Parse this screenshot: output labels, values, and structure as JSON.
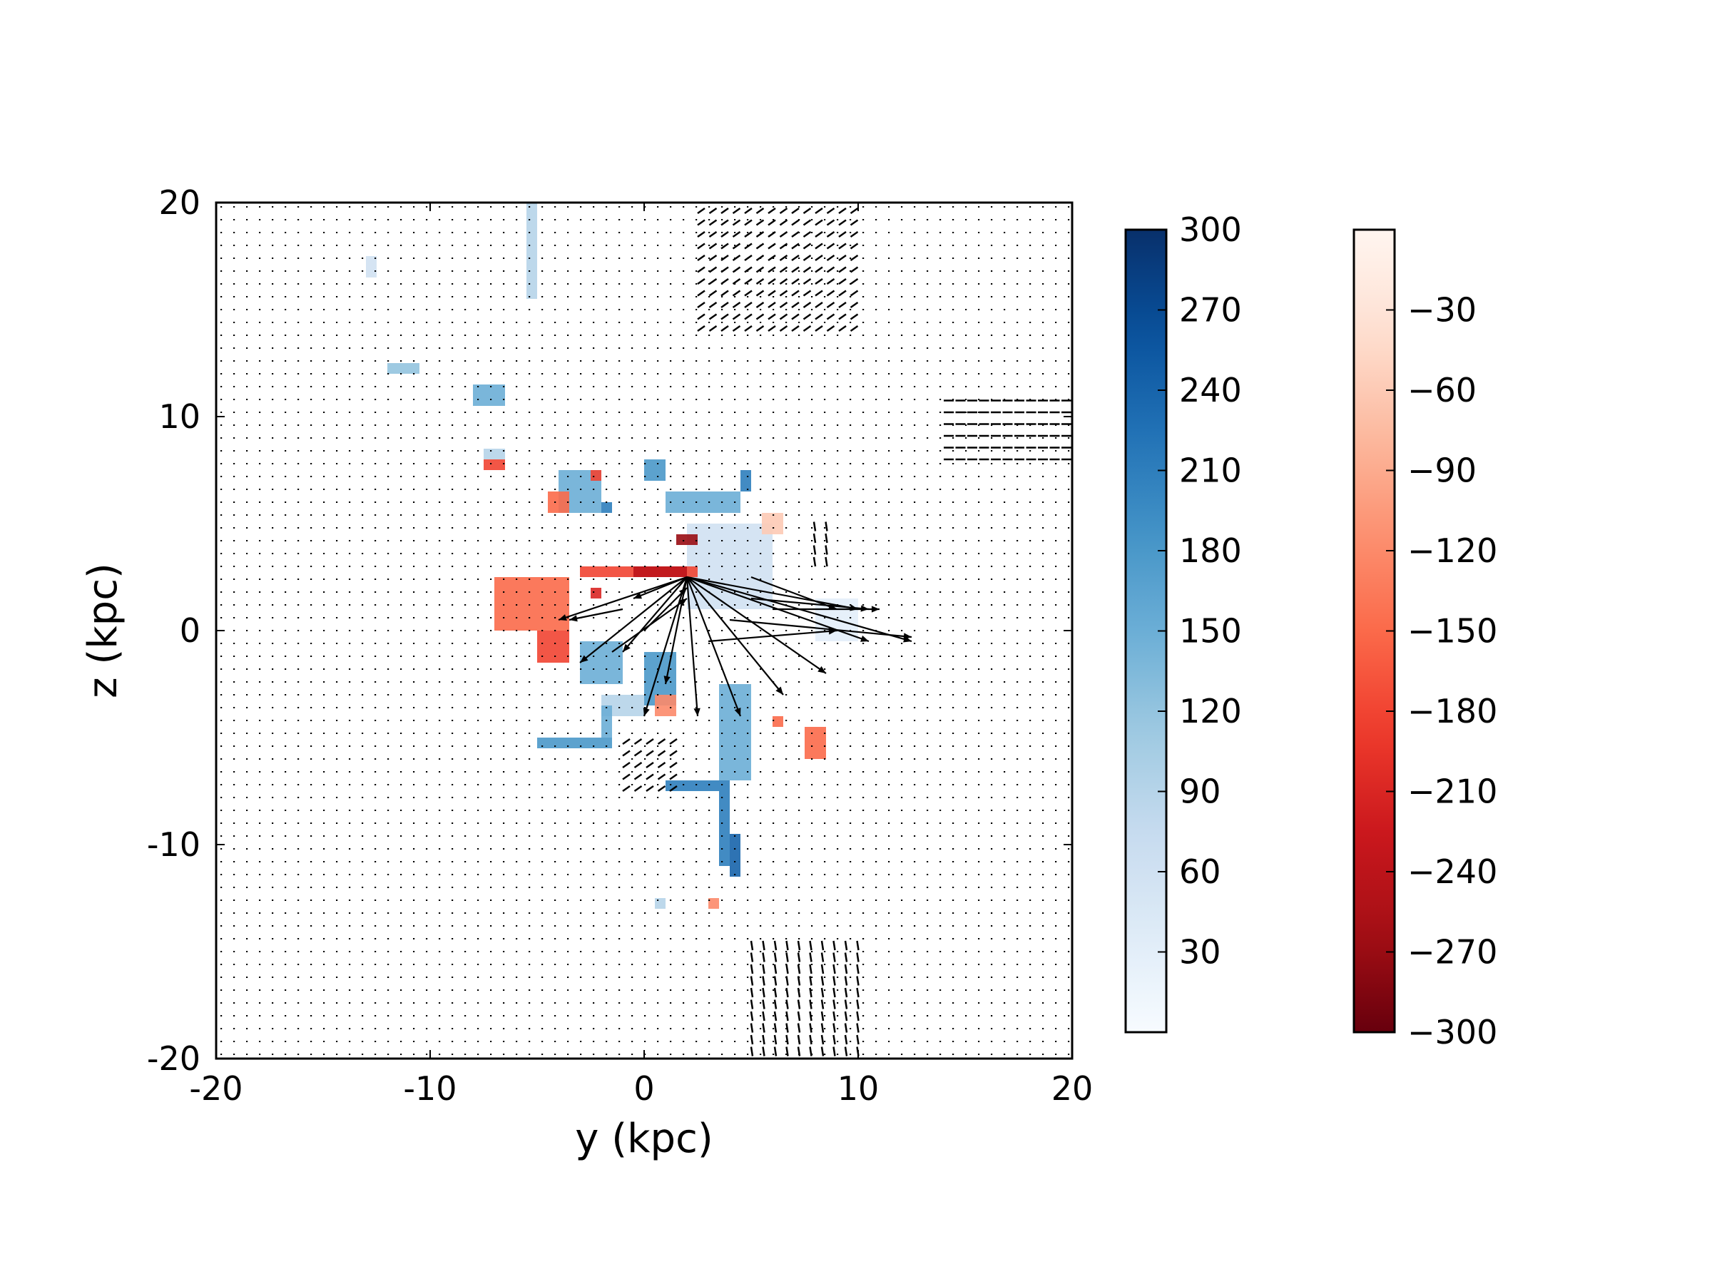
{
  "chart_data": {
    "type": "heatmap",
    "subtype": "velocity field with quiver arrows",
    "xlabel": "y (kpc)",
    "ylabel": "z (kpc)",
    "xlim": [
      -20,
      20
    ],
    "ylim": [
      -20,
      20
    ],
    "x_ticks": [
      "-20",
      "-10",
      "0",
      "10",
      "20"
    ],
    "y_ticks": [
      "20",
      "10",
      "0",
      "-10",
      "-20"
    ],
    "grid": false,
    "colorbars": [
      {
        "name": "positive",
        "colormap": "Blues",
        "range": [
          0,
          300
        ],
        "tick_labels": [
          "300",
          "270",
          "240",
          "210",
          "180",
          "150",
          "120",
          "90",
          "60",
          "30"
        ],
        "tick_values": [
          300,
          270,
          240,
          210,
          180,
          150,
          120,
          90,
          60,
          30
        ],
        "colors": [
          "#f7fbff",
          "#deebf7",
          "#c6dbef",
          "#9ecae1",
          "#6baed6",
          "#4292c6",
          "#2171b5",
          "#08519c",
          "#08306b"
        ]
      },
      {
        "name": "negative",
        "colormap": "Reds_r",
        "range": [
          -300,
          0
        ],
        "tick_labels": [
          "−30",
          "−60",
          "−90",
          "−120",
          "−150",
          "−180",
          "−210",
          "−240",
          "−270",
          "−300"
        ],
        "tick_values": [
          -30,
          -60,
          -90,
          -120,
          -150,
          -180,
          -210,
          -240,
          -270,
          -300
        ],
        "colors": [
          "#67000d",
          "#a50f15",
          "#cb181d",
          "#ef3b2c",
          "#fb6a4a",
          "#fc9272",
          "#fcbba1",
          "#fee0d2",
          "#fff5f0"
        ]
      }
    ],
    "blue_regions": [
      {
        "y": [
          -5.5,
          -5.0
        ],
        "z": [
          15.5,
          20.0
        ],
        "value": 90
      },
      {
        "y": [
          -13.0,
          -12.5
        ],
        "z": [
          16.5,
          17.5
        ],
        "value": 60
      },
      {
        "y": [
          -8.0,
          -6.5
        ],
        "z": [
          10.5,
          11.5
        ],
        "value": 150
      },
      {
        "y": [
          -12.0,
          -10.5
        ],
        "z": [
          12.0,
          12.5
        ],
        "value": 120
      },
      {
        "y": [
          -7.5,
          -6.5
        ],
        "z": [
          8.0,
          8.5
        ],
        "value": 90
      },
      {
        "y": [
          -4.0,
          -2.0
        ],
        "z": [
          5.5,
          7.5
        ],
        "value": 150
      },
      {
        "y": [
          -2.0,
          -1.5
        ],
        "z": [
          5.5,
          6.0
        ],
        "value": 210
      },
      {
        "y": [
          0.0,
          1.0
        ],
        "z": [
          7.0,
          8.0
        ],
        "value": 180
      },
      {
        "y": [
          1.0,
          4.5
        ],
        "z": [
          5.5,
          6.5
        ],
        "value": 150
      },
      {
        "y": [
          4.5,
          5.0
        ],
        "z": [
          6.5,
          7.5
        ],
        "value": 210
      },
      {
        "y": [
          2.0,
          6.0
        ],
        "z": [
          1.0,
          5.0
        ],
        "value": 60
      },
      {
        "y": [
          -3.0,
          -1.0
        ],
        "z": [
          -2.5,
          -0.5
        ],
        "value": 150
      },
      {
        "y": [
          0.0,
          1.5
        ],
        "z": [
          -3.5,
          -1.0
        ],
        "value": 180
      },
      {
        "y": [
          -2.0,
          0.0
        ],
        "z": [
          -4.0,
          -3.0
        ],
        "value": 90
      },
      {
        "y": [
          -5.0,
          -1.5
        ],
        "z": [
          -5.5,
          -5.0
        ],
        "value": 180
      },
      {
        "y": [
          -2.0,
          -1.5
        ],
        "z": [
          -5.0,
          -3.5
        ],
        "value": 150
      },
      {
        "y": [
          3.5,
          5.0
        ],
        "z": [
          -7.0,
          -2.5
        ],
        "value": 150
      },
      {
        "y": [
          1.0,
          3.5
        ],
        "z": [
          -7.5,
          -7.0
        ],
        "value": 210
      },
      {
        "y": [
          3.5,
          4.0
        ],
        "z": [
          -11.0,
          -7.0
        ],
        "value": 210
      },
      {
        "y": [
          4.0,
          4.5
        ],
        "z": [
          -11.5,
          -9.5
        ],
        "value": 240
      },
      {
        "y": [
          0.5,
          1.0
        ],
        "z": [
          -13.0,
          -12.5
        ],
        "value": 90
      },
      {
        "y": [
          8.0,
          10.0
        ],
        "z": [
          1.5,
          -0.5
        ],
        "value": 30
      }
    ],
    "red_regions": [
      {
        "y": [
          -7.5,
          -6.5
        ],
        "z": [
          7.5,
          8.0
        ],
        "value": -180
      },
      {
        "y": [
          -4.5,
          -3.5
        ],
        "z": [
          5.5,
          6.5
        ],
        "value": -150
      },
      {
        "y": [
          -2.5,
          -2.0
        ],
        "z": [
          7.0,
          7.5
        ],
        "value": -180
      },
      {
        "y": [
          -3.0,
          2.5
        ],
        "z": [
          2.5,
          3.0
        ],
        "value": -180
      },
      {
        "y": [
          -0.5,
          2.0
        ],
        "z": [
          2.5,
          3.0
        ],
        "value": -240
      },
      {
        "y": [
          1.5,
          2.5
        ],
        "z": [
          4.0,
          4.5
        ],
        "value": -270
      },
      {
        "y": [
          -7.0,
          -3.5
        ],
        "z": [
          0.0,
          2.5
        ],
        "value": -150
      },
      {
        "y": [
          -5.0,
          -3.5
        ],
        "z": [
          -1.5,
          0.0
        ],
        "value": -180
      },
      {
        "y": [
          -2.5,
          -2.0
        ],
        "z": [
          1.5,
          2.0
        ],
        "value": -210
      },
      {
        "y": [
          0.5,
          1.5
        ],
        "z": [
          -4.0,
          -3.0
        ],
        "value": -120
      },
      {
        "y": [
          6.0,
          6.5
        ],
        "z": [
          -4.0,
          -4.5
        ],
        "value": -150
      },
      {
        "y": [
          7.5,
          8.5
        ],
        "z": [
          -6.0,
          -4.5
        ],
        "value": -150
      },
      {
        "y": [
          3.0,
          3.5
        ],
        "z": [
          -13.0,
          -12.5
        ],
        "value": -120
      },
      {
        "y": [
          5.5,
          6.5
        ],
        "z": [
          5.5,
          4.5
        ],
        "value": -60
      }
    ],
    "long_vectors_from_origin": [
      {
        "y": 2.0,
        "z": 2.5,
        "dy": -6.0,
        "dz": -2.0
      },
      {
        "y": 2.0,
        "z": 2.5,
        "dy": -5.0,
        "dz": -4.0
      },
      {
        "y": 2.0,
        "z": 2.5,
        "dy": -3.0,
        "dz": -3.5
      },
      {
        "y": 2.0,
        "z": 2.5,
        "dy": -2.0,
        "dz": -6.5
      },
      {
        "y": 2.0,
        "z": 2.5,
        "dy": -1.0,
        "dz": -5.0
      },
      {
        "y": 2.0,
        "z": 2.5,
        "dy": 0.5,
        "dz": -6.5
      },
      {
        "y": 2.0,
        "z": 2.5,
        "dy": 2.5,
        "dz": -6.5
      },
      {
        "y": 2.0,
        "z": 2.5,
        "dy": 4.5,
        "dz": -5.5
      },
      {
        "y": 2.0,
        "z": 2.5,
        "dy": 6.5,
        "dz": -4.5
      },
      {
        "y": 2.0,
        "z": 2.5,
        "dy": 8.5,
        "dz": -3.0
      },
      {
        "y": 2.0,
        "z": 2.5,
        "dy": 10.5,
        "dz": -3.0
      },
      {
        "y": 2.0,
        "z": 2.5,
        "dy": 8.0,
        "dz": -1.5
      },
      {
        "y": 2.0,
        "z": 2.5,
        "dy": -2.5,
        "dz": -1.0
      },
      {
        "y": 4.0,
        "z": 0.5,
        "dy": 8.5,
        "dz": -0.8
      },
      {
        "y": 5.0,
        "z": 1.5,
        "dy": 5.5,
        "dz": -0.5
      },
      {
        "y": 5.0,
        "z": 2.5,
        "dy": 4.0,
        "dz": -1.5
      },
      {
        "y": 6.0,
        "z": 1.0,
        "dy": 5.0,
        "dz": 0.0
      },
      {
        "y": 3.0,
        "z": -0.5,
        "dy": 6.0,
        "dz": 0.5
      },
      {
        "y": -1.0,
        "z": 1.0,
        "dy": -2.5,
        "dz": -0.5
      },
      {
        "y": 0.0,
        "z": 0.0,
        "dy": 2.0,
        "dz": 2.0
      },
      {
        "y": -1.5,
        "z": -1.0,
        "dy": 3.5,
        "dz": 2.5
      }
    ],
    "dense_arrow_zones": [
      {
        "y": [
          2.5,
          10.0
        ],
        "z": [
          14.0,
          20.0
        ],
        "dir": "diagonal"
      },
      {
        "y": [
          14.0,
          20.0
        ],
        "z": [
          8.0,
          11.0
        ],
        "dir": "right"
      },
      {
        "y": [
          5.0,
          10.0
        ],
        "z": [
          -20.0,
          -14.0
        ],
        "dir": "down"
      },
      {
        "y": [
          -1.0,
          1.5
        ],
        "z": [
          -7.5,
          -5.0
        ],
        "dir": "diagonal"
      },
      {
        "y": [
          8.0,
          9.0
        ],
        "z": [
          3.0,
          5.0
        ],
        "dir": "up"
      }
    ]
  }
}
